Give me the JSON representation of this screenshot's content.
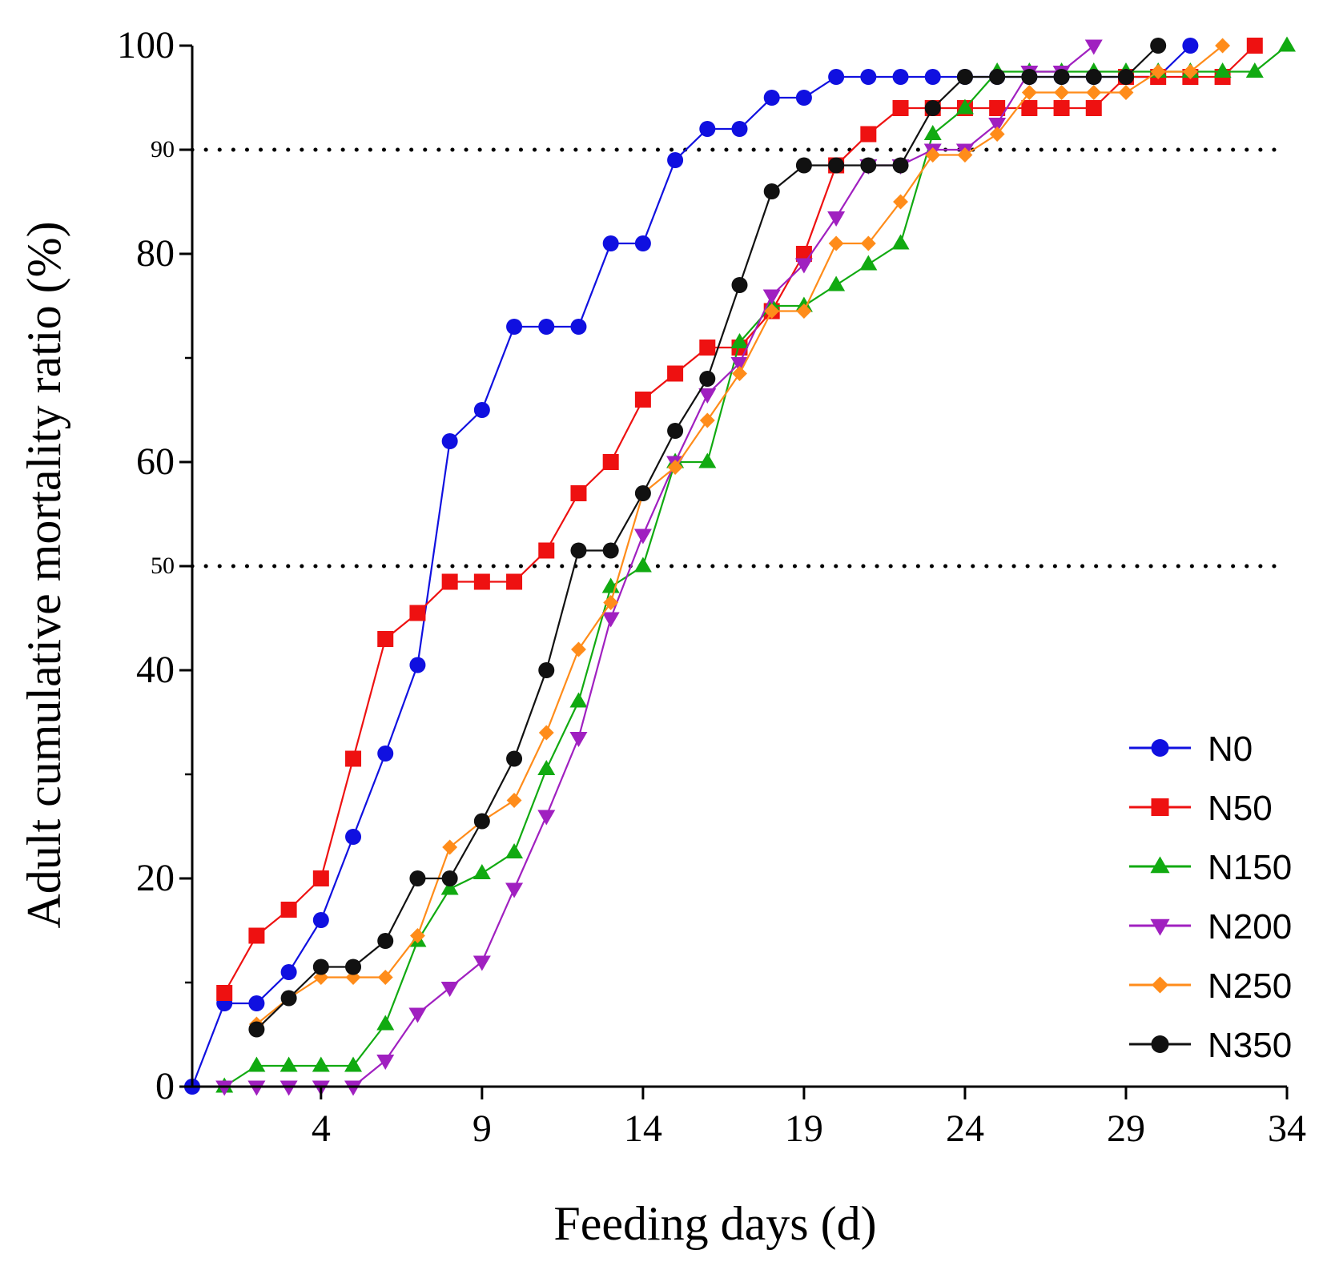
{
  "chart_data": {
    "type": "line",
    "title": "",
    "xlabel": "Feeding days (d)",
    "ylabel": "Adult cumulative mortality ratio (%)",
    "xlim": [
      0,
      34
    ],
    "ylim": [
      0,
      100
    ],
    "xticks": [
      4,
      9,
      14,
      19,
      24,
      29,
      34
    ],
    "yticks": [
      0,
      20,
      40,
      50,
      60,
      80,
      90,
      100
    ],
    "reference_lines": [
      50,
      90
    ],
    "legend_position": "bottom-right",
    "series": [
      {
        "name": "N0",
        "color": "#1010e0",
        "marker": "circle",
        "x": [
          0,
          1,
          2,
          3,
          4,
          5,
          6,
          7,
          8,
          9,
          10,
          11,
          12,
          13,
          14,
          15,
          16,
          17,
          18,
          19,
          20,
          21,
          22,
          23,
          24,
          25,
          26,
          27,
          28,
          29,
          30,
          31
        ],
        "y": [
          0,
          8,
          8,
          11,
          16,
          24,
          32,
          40.5,
          62,
          65,
          73,
          73,
          73,
          81,
          81,
          89,
          92,
          92,
          95,
          95,
          97,
          97,
          97,
          97,
          97,
          97,
          97,
          97,
          97,
          97,
          97,
          100
        ]
      },
      {
        "name": "N50",
        "color": "#ee1111",
        "marker": "square",
        "x": [
          1,
          2,
          3,
          4,
          5,
          6,
          7,
          8,
          9,
          10,
          11,
          12,
          13,
          14,
          15,
          16,
          17,
          18,
          19,
          20,
          21,
          22,
          23,
          24,
          25,
          26,
          27,
          28,
          29,
          30,
          31,
          32,
          33
        ],
        "y": [
          9,
          14.5,
          17,
          20,
          31.5,
          43,
          45.5,
          48.5,
          48.5,
          48.5,
          51.5,
          57,
          60,
          66,
          68.5,
          71,
          71,
          74.5,
          80,
          88.5,
          91.5,
          94,
          94,
          94,
          94,
          94,
          94,
          94,
          97,
          97,
          97,
          97,
          100
        ]
      },
      {
        "name": "N150",
        "color": "#11aa11",
        "marker": "triangle-up",
        "x": [
          1,
          2,
          3,
          4,
          5,
          6,
          7,
          8,
          9,
          10,
          11,
          12,
          13,
          14,
          15,
          16,
          17,
          18,
          19,
          20,
          21,
          22,
          23,
          24,
          25,
          26,
          27,
          28,
          29,
          30,
          31,
          32,
          33,
          34
        ],
        "y": [
          0,
          2,
          2,
          2,
          2,
          6,
          14,
          19,
          20.5,
          22.5,
          30.5,
          37,
          48,
          50,
          60,
          60,
          71.5,
          75,
          75,
          77,
          79,
          81,
          91.5,
          94,
          97.5,
          97.5,
          97.5,
          97.5,
          97.5,
          97.5,
          97.5,
          97.5,
          97.5,
          100
        ]
      },
      {
        "name": "N200",
        "color": "#a020c0",
        "marker": "triangle-down",
        "x": [
          1,
          2,
          3,
          4,
          5,
          6,
          7,
          8,
          9,
          10,
          11,
          12,
          13,
          14,
          15,
          16,
          17,
          18,
          19,
          20,
          21,
          22,
          23,
          24,
          25,
          26,
          27,
          28
        ],
        "y": [
          0,
          0,
          0,
          0,
          0,
          2.5,
          7,
          9.5,
          12,
          19,
          26,
          33.5,
          45,
          53,
          60,
          66.5,
          69.5,
          76,
          79,
          83.5,
          88.5,
          88.5,
          90,
          90,
          92.5,
          97.5,
          97.5,
          100
        ]
      },
      {
        "name": "N250",
        "color": "#ff8c1a",
        "marker": "diamond",
        "x": [
          2,
          3,
          4,
          5,
          6,
          7,
          8,
          9,
          10,
          11,
          12,
          13,
          14,
          15,
          16,
          17,
          18,
          19,
          20,
          21,
          22,
          23,
          24,
          25,
          26,
          27,
          28,
          29,
          30,
          31,
          32
        ],
        "y": [
          6,
          8.5,
          10.5,
          10.5,
          10.5,
          14.5,
          23,
          25.5,
          27.5,
          34,
          42,
          46.5,
          57,
          59.5,
          64,
          68.5,
          74.5,
          74.5,
          81,
          81,
          85,
          89.5,
          89.5,
          91.5,
          95.5,
          95.5,
          95.5,
          95.5,
          97.5,
          97.5,
          100
        ]
      },
      {
        "name": "N350",
        "color": "#111111",
        "marker": "circle",
        "x": [
          2,
          3,
          4,
          5,
          6,
          7,
          8,
          9,
          10,
          11,
          12,
          13,
          14,
          15,
          16,
          17,
          18,
          19,
          20,
          21,
          22,
          23,
          24,
          25,
          26,
          27,
          28,
          29,
          30
        ],
        "y": [
          5.5,
          8.5,
          11.5,
          11.5,
          14,
          20,
          20,
          25.5,
          31.5,
          40,
          51.5,
          51.5,
          57,
          63,
          68,
          77,
          86,
          88.5,
          88.5,
          88.5,
          88.5,
          94,
          97,
          97,
          97,
          97,
          97,
          97,
          100
        ]
      }
    ]
  }
}
